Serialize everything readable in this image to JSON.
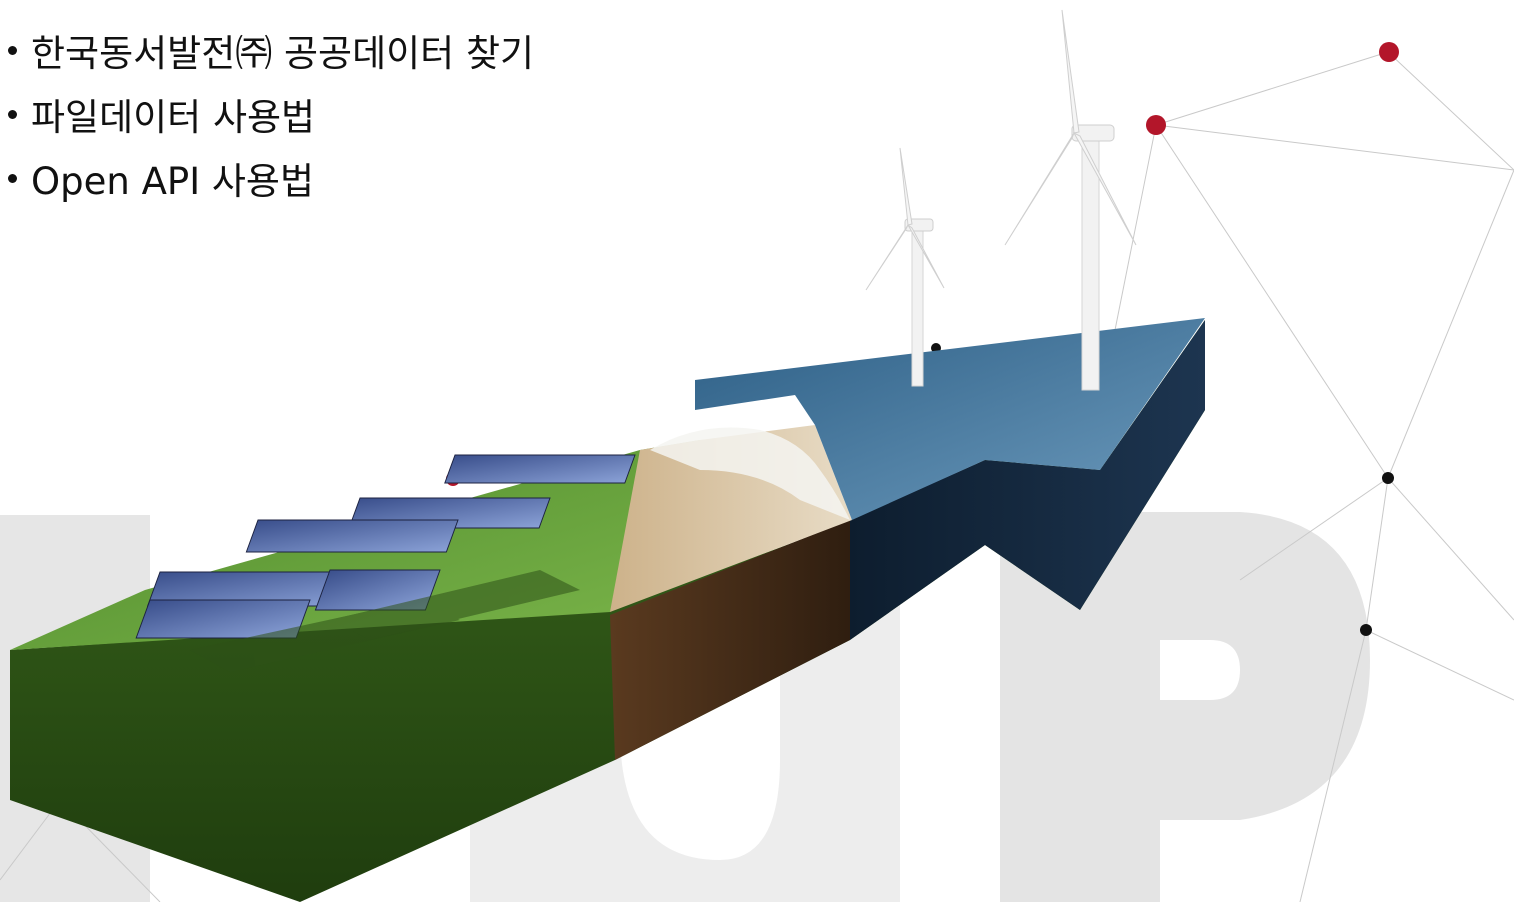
{
  "menu": {
    "items": [
      {
        "label": "한국동서발전㈜ 공공데이터 찾기"
      },
      {
        "label": "파일데이터 사용법"
      },
      {
        "label": "Open API 사용법"
      }
    ]
  },
  "illustration": {
    "subject": "renewable-energy-arrow",
    "layers": [
      "solar-panels-on-grass",
      "soil",
      "beach-sand",
      "sea-with-wind-turbines"
    ],
    "background_letters": "UP",
    "network_node_colors": {
      "accent": "#b3162a",
      "dark": "#111111"
    }
  }
}
